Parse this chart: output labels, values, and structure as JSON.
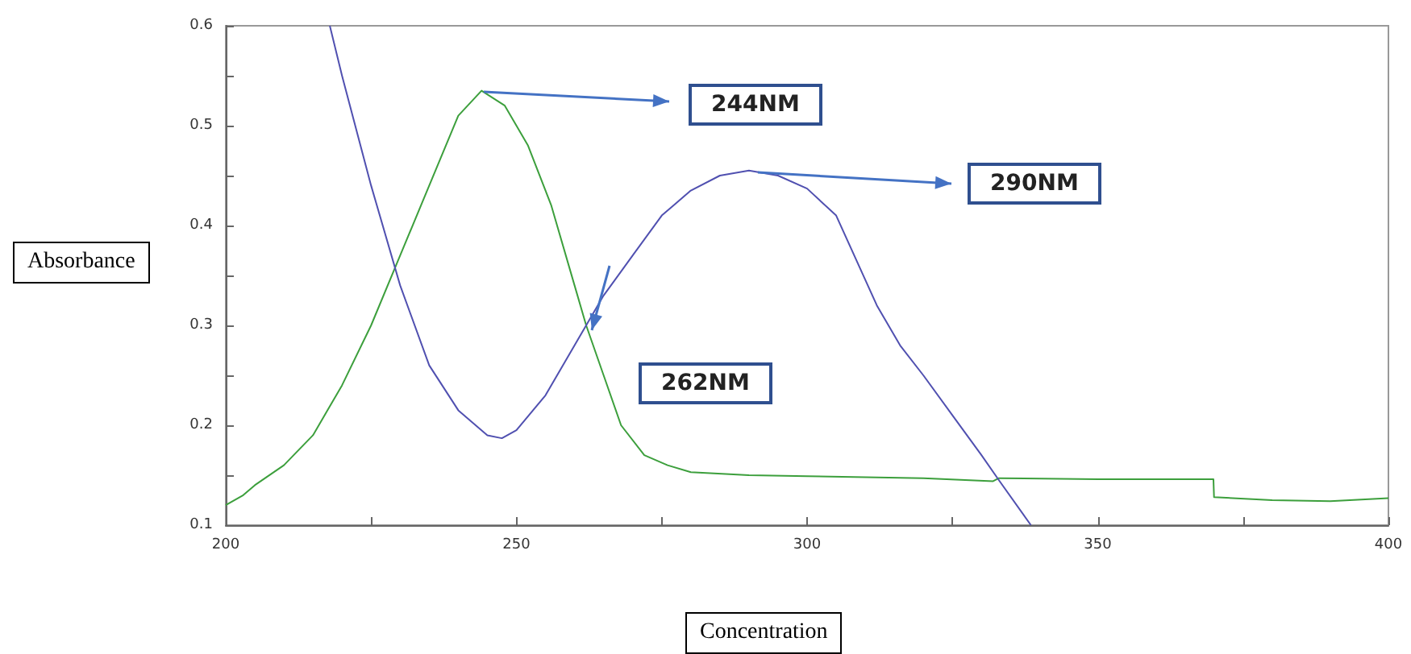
{
  "chart_data": {
    "type": "line",
    "xlabel": "Concentration",
    "ylabel": "Absorbance",
    "xlim": [
      200,
      400
    ],
    "ylim": [
      0.1,
      0.6
    ],
    "xticks": [
      200,
      {
        "value": 225,
        "label": null
      },
      250,
      {
        "value": 275,
        "label": null
      },
      300,
      {
        "value": 325,
        "label": null
      },
      350,
      {
        "value": 375,
        "label": null
      },
      400
    ],
    "yticks": [
      0.1,
      {
        "value": 0.15,
        "label": null
      },
      0.2,
      {
        "value": 0.25,
        "label": null
      },
      0.3,
      {
        "value": 0.35,
        "label": null
      },
      0.4,
      {
        "value": 0.45,
        "label": null
      },
      0.5,
      {
        "value": 0.55,
        "label": null
      },
      0.6
    ],
    "grid": false,
    "marker": "none",
    "line_style": "solid",
    "series": [
      {
        "color": "#3c9f3c",
        "x": [
          200,
          203,
          205,
          210,
          215,
          220,
          225,
          230,
          235,
          240,
          244,
          248,
          252,
          256,
          260,
          262,
          265,
          268,
          272,
          276,
          280,
          290,
          300,
          320,
          332,
          333,
          350,
          369.9,
          370,
          380,
          390,
          400
        ],
        "values": [
          0.12,
          0.13,
          0.14,
          0.16,
          0.19,
          0.24,
          0.3,
          0.37,
          0.44,
          0.51,
          0.535,
          0.52,
          0.48,
          0.42,
          0.34,
          0.3,
          0.25,
          0.2,
          0.17,
          0.16,
          0.153,
          0.15,
          0.149,
          0.147,
          0.144,
          0.147,
          0.146,
          0.146,
          0.128,
          0.125,
          0.124,
          0.127
        ]
      },
      {
        "color": "#5050b0",
        "x": [
          217.9,
          220,
          225,
          230,
          235,
          240,
          245,
          247.5,
          250,
          255,
          260,
          265,
          270,
          275,
          280,
          285,
          290,
          295,
          300,
          305,
          312,
          316,
          320,
          325,
          330,
          333,
          338.5
        ],
        "values": [
          0.6,
          0.55,
          0.44,
          0.34,
          0.26,
          0.215,
          0.19,
          0.187,
          0.195,
          0.23,
          0.28,
          0.33,
          0.37,
          0.41,
          0.435,
          0.45,
          0.455,
          0.45,
          0.437,
          0.41,
          0.32,
          0.28,
          0.25,
          0.21,
          0.17,
          0.145,
          0.1
        ]
      }
    ],
    "annotations": [
      "244NM",
      "290NM",
      "262NM"
    ]
  }
}
